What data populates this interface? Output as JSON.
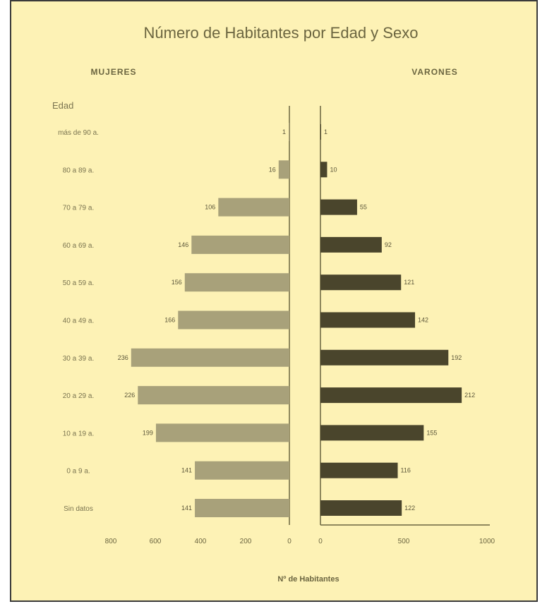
{
  "chart_data": {
    "type": "bar",
    "title": "Número de Habitantes por Edad y Sexo",
    "left_header": "MUJERES",
    "right_header": "VARONES",
    "category_header": "Edad",
    "xlabel": "Nº de Habitantes",
    "categories": [
      "más de 90 a.",
      "80 a 89 a.",
      "70 a 79 a.",
      "60 a 69 a.",
      "50 a 59 a.",
      "40 a 49 a.",
      "30 a 39 a.",
      "20 a 29 a.",
      "10 a 19 a.",
      "0 a 9 a.",
      "Sin datos"
    ],
    "series": [
      {
        "name": "MUJERES",
        "color": "#a8a17a",
        "values": [
          1,
          16,
          106,
          146,
          156,
          166,
          236,
          226,
          199,
          141,
          141
        ]
      },
      {
        "name": "VARONES",
        "color": "#4a452c",
        "values": [
          1,
          10,
          55,
          92,
          121,
          142,
          192,
          212,
          155,
          116,
          122
        ]
      }
    ],
    "left_ticks": [
      "800",
      "600",
      "400",
      "200",
      "0"
    ],
    "right_ticks": [
      "0",
      "500",
      "1000"
    ],
    "xlim_left": [
      0,
      240
    ],
    "xlim_right": [
      0,
      250
    ],
    "grid": false
  }
}
